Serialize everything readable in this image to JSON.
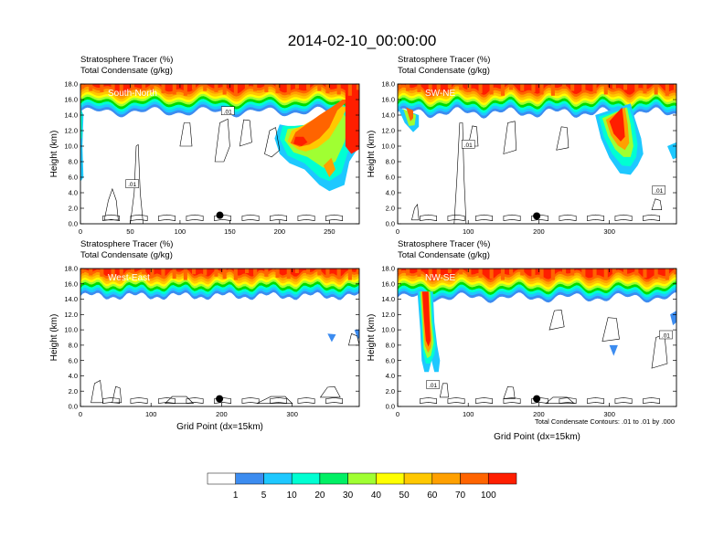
{
  "page": {
    "title": "2014-02-10_00:00:00"
  },
  "chart_data": {
    "type": "heatmap",
    "colorbar": {
      "labels": [
        "1",
        "5",
        "10",
        "20",
        "30",
        "40",
        "50",
        "60",
        "70",
        "100"
      ],
      "colors": [
        "#ffffff",
        "#3c8cf0",
        "#1ec8ff",
        "#00ffd2",
        "#00f064",
        "#00dc00",
        "#a0ff32",
        "#ffff00",
        "#ffc800",
        "#ffa000",
        "#ff6400",
        "#ff1e00"
      ]
    },
    "footnote": "Total Condensate Contours: .01 to .01 by .000",
    "panels": [
      {
        "id": "south-north",
        "label": "South-North",
        "title_line1": "Stratosphere Tracer   (%)",
        "title_line2": "Total Condensate   (g/kg)",
        "ylabel": "Height (km)",
        "xlabel": "",
        "xlim": [
          0,
          280
        ],
        "ylim": [
          0,
          18
        ],
        "xticks": [
          "0",
          "50",
          "100",
          "150",
          "200",
          "250"
        ],
        "yticks": [
          "0.0",
          "2.0",
          "4.0",
          "6.0",
          "8.0",
          "10.0",
          "12.0",
          "14.0",
          "16.0",
          "18.0"
        ],
        "marker": {
          "x": 140,
          "y": 1.1
        },
        "contour_labels": [
          ".01",
          ".01"
        ]
      },
      {
        "id": "sw-ne",
        "label": "SW-NE",
        "title_line1": "Stratosphere Tracer   (%)",
        "title_line2": "Total Condensate   (g/kg)",
        "ylabel": "Height (km)",
        "xlabel": "",
        "xlim": [
          0,
          395
        ],
        "ylim": [
          0,
          18
        ],
        "xticks": [
          "0",
          "100",
          "200",
          "300"
        ],
        "yticks": [
          "0.0",
          "2.0",
          "4.0",
          "6.0",
          "8.0",
          "10.0",
          "12.0",
          "14.0",
          "16.0",
          "18.0"
        ],
        "marker": {
          "x": 197,
          "y": 1.0
        },
        "contour_labels": [
          ".01",
          ".01"
        ]
      },
      {
        "id": "west-east",
        "label": "West-East",
        "title_line1": "Stratosphere Tracer   (%)",
        "title_line2": "Total Condensate   (g/kg)",
        "ylabel": "Height (km)",
        "xlabel": "Grid Point (dx=15km)",
        "xlim": [
          0,
          395
        ],
        "ylim": [
          0,
          18
        ],
        "xticks": [
          "0",
          "100",
          "200",
          "300"
        ],
        "yticks": [
          "0.0",
          "2.0",
          "4.0",
          "6.0",
          "8.0",
          "10.0",
          "12.0",
          "14.0",
          "16.0",
          "18.0"
        ],
        "marker": {
          "x": 197,
          "y": 1.0
        },
        "contour_labels": []
      },
      {
        "id": "nw-se",
        "label": "NW-SE",
        "title_line1": "Stratosphere Tracer   (%)",
        "title_line2": "Total Condensate   (g/kg)",
        "ylabel": "Height (km)",
        "xlabel": "Grid Point (dx=15km)",
        "xlim": [
          0,
          395
        ],
        "ylim": [
          0,
          18
        ],
        "xticks": [
          "0",
          "100",
          "200",
          "300"
        ],
        "yticks": [
          "0.0",
          "2.0",
          "4.0",
          "6.0",
          "8.0",
          "10.0",
          "12.0",
          "14.0",
          "16.0",
          "18.0"
        ],
        "marker": {
          "x": 197,
          "y": 1.0
        },
        "contour_labels": [
          ".01",
          ".01"
        ]
      }
    ]
  }
}
